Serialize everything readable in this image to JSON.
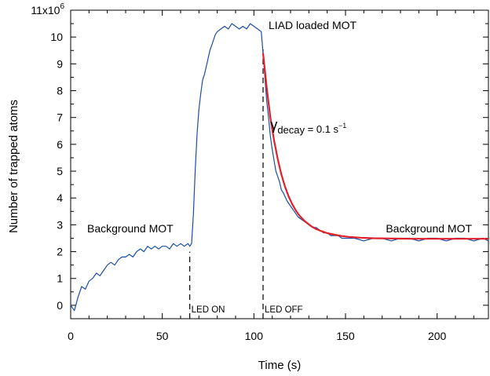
{
  "chart_data": {
    "type": "line",
    "xlabel": "Time (s)",
    "ylabel": "Number of trapped atoms",
    "xlim": [
      0,
      228
    ],
    "ylim": [
      -0.5,
      11
    ],
    "x_ticks": [
      0,
      50,
      100,
      150,
      200
    ],
    "y_ticks": [
      0,
      1,
      2,
      3,
      4,
      5,
      6,
      7,
      8,
      9,
      10
    ],
    "y_top_label": {
      "base": "11x10",
      "exp": "6"
    },
    "series": [
      {
        "color": "#1a4fa3",
        "x": [
          0,
          2,
          4,
          6,
          8,
          10,
          12,
          14,
          16,
          18,
          20,
          22,
          24,
          26,
          28,
          30,
          32,
          34,
          36,
          38,
          40,
          42,
          44,
          46,
          48,
          50,
          52,
          54,
          56,
          58,
          60,
          62,
          64,
          65,
          66,
          67,
          68,
          69,
          70,
          71,
          72,
          73,
          74,
          75,
          76,
          77,
          78,
          79,
          80,
          82,
          84,
          86,
          88,
          90,
          92,
          94,
          96,
          98,
          100,
          102,
          104,
          105,
          106,
          107,
          108,
          109,
          110,
          111,
          112,
          113,
          114,
          115,
          116,
          118,
          120,
          122,
          124,
          126,
          128,
          130,
          132,
          134,
          136,
          138,
          140,
          142,
          144,
          146,
          148,
          150,
          155,
          160,
          165,
          170,
          175,
          180,
          185,
          190,
          195,
          200,
          205,
          210,
          215,
          220,
          225,
          228
        ],
        "y": [
          0,
          -0.2,
          0.3,
          0.7,
          0.6,
          0.9,
          1.0,
          1.2,
          1.1,
          1.3,
          1.5,
          1.6,
          1.5,
          1.7,
          1.8,
          1.8,
          1.9,
          1.8,
          2.0,
          2.1,
          2.0,
          2.2,
          2.1,
          2.2,
          2.1,
          2.2,
          2.2,
          2.1,
          2.3,
          2.2,
          2.3,
          2.2,
          2.3,
          2.2,
          2.3,
          3.4,
          5.1,
          6.4,
          7.3,
          7.9,
          8.4,
          8.6,
          8.9,
          9.2,
          9.5,
          9.7,
          9.9,
          10.1,
          10.2,
          10.3,
          10.4,
          10.3,
          10.5,
          10.4,
          10.3,
          10.4,
          10.3,
          10.5,
          10.4,
          10.3,
          10.2,
          9.4,
          8.5,
          7.6,
          7.0,
          6.3,
          5.8,
          5.4,
          5.0,
          4.8,
          4.6,
          4.3,
          4.2,
          3.9,
          3.7,
          3.5,
          3.3,
          3.2,
          3.1,
          3.0,
          2.9,
          2.9,
          2.8,
          2.7,
          2.7,
          2.6,
          2.6,
          2.6,
          2.5,
          2.5,
          2.5,
          2.4,
          2.5,
          2.5,
          2.4,
          2.5,
          2.5,
          2.4,
          2.5,
          2.5,
          2.4,
          2.5,
          2.5,
          2.4,
          2.5,
          2.4
        ]
      },
      {
        "color": "#e0202a",
        "x": [
          105,
          107,
          109,
          111,
          113,
          115,
          117,
          119,
          121,
          123,
          125,
          128,
          131,
          134,
          137,
          140,
          144,
          148,
          152,
          158,
          165,
          175,
          185,
          200,
          215,
          228
        ],
        "y": [
          9.4,
          8.1,
          7.0,
          6.15,
          5.45,
          4.88,
          4.42,
          4.05,
          3.76,
          3.52,
          3.33,
          3.12,
          2.96,
          2.84,
          2.76,
          2.69,
          2.63,
          2.58,
          2.55,
          2.52,
          2.5,
          2.49,
          2.48,
          2.48,
          2.48,
          2.48
        ]
      }
    ],
    "vlines": [
      {
        "x": 65,
        "label": "LED ON"
      },
      {
        "x": 105,
        "label": "LED OFF"
      }
    ],
    "annotations": [
      {
        "text": "Background MOT",
        "x": 9,
        "y": 2.72
      },
      {
        "text": "LIAD loaded MOT",
        "x": 108,
        "y": 10.3
      },
      {
        "text": "Background MOT",
        "x": 172,
        "y": 2.72
      }
    ],
    "gamma": {
      "symbol": "γ",
      "sub": "decay",
      "rest": " = 0.1 s",
      "sup": "−1",
      "x": 109,
      "y": 6.55
    },
    "grid": false,
    "legend": "none"
  }
}
